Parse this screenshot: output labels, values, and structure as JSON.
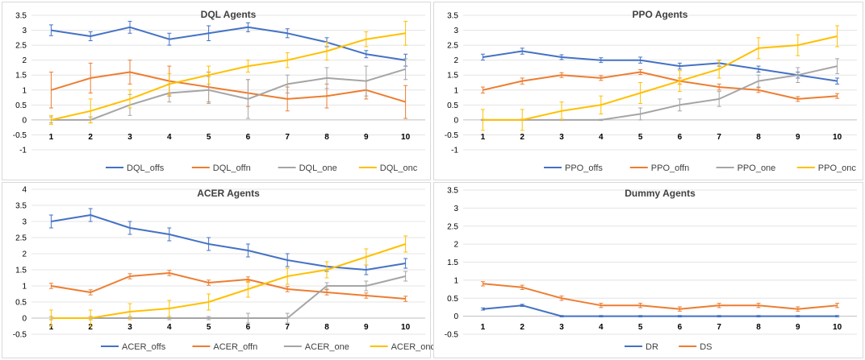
{
  "chart_data": [
    {
      "type": "line",
      "title": "DQL Agents",
      "categories": [
        "1",
        "2",
        "3",
        "4",
        "5",
        "6",
        "7",
        "8",
        "9",
        "10"
      ],
      "ylim": [
        -1,
        3.5
      ],
      "yticks": [
        "-1",
        "-0.5",
        "0",
        "0.5",
        "1",
        "1.5",
        "2",
        "2.5",
        "3",
        "3.5"
      ],
      "legend_position": "bottom",
      "series": [
        {
          "name": "DQL_offs",
          "color": "#4472c4",
          "values": [
            3.0,
            2.8,
            3.1,
            2.7,
            2.9,
            3.1,
            2.9,
            2.6,
            2.2,
            2.0
          ],
          "errors": [
            0.18,
            0.15,
            0.2,
            0.2,
            0.25,
            0.15,
            0.15,
            0.15,
            0.12,
            0.2
          ]
        },
        {
          "name": "DQL_offn",
          "color": "#ed7d31",
          "values": [
            1.0,
            1.4,
            1.6,
            1.3,
            1.1,
            0.9,
            0.7,
            0.8,
            1.0,
            0.6
          ],
          "errors": [
            0.6,
            0.5,
            0.4,
            0.5,
            0.5,
            0.45,
            0.4,
            0.4,
            0.3,
            0.55
          ]
        },
        {
          "name": "DQL_one",
          "color": "#a5a5a5",
          "values": [
            0.0,
            0.0,
            0.5,
            0.9,
            1.0,
            0.7,
            1.2,
            1.4,
            1.3,
            1.7
          ],
          "errors": [
            0.1,
            0.1,
            0.35,
            0.3,
            0.45,
            0.65,
            0.3,
            0.35,
            0.5,
            0.35
          ]
        },
        {
          "name": "DQL_onc",
          "color": "#ffc000",
          "values": [
            0.0,
            0.3,
            0.7,
            1.2,
            1.5,
            1.8,
            2.0,
            2.3,
            2.7,
            2.9
          ],
          "errors": [
            0.15,
            0.4,
            0.3,
            0.35,
            0.3,
            0.2,
            0.25,
            0.3,
            0.25,
            0.4
          ]
        }
      ]
    },
    {
      "type": "line",
      "title": "PPO Agents",
      "categories": [
        "1",
        "2",
        "3",
        "4",
        "5",
        "6",
        "7",
        "8",
        "9",
        "10"
      ],
      "ylim": [
        -1,
        3.5
      ],
      "yticks": [
        "-1",
        "-0.5",
        "0",
        "0.5",
        "1",
        "1.5",
        "2",
        "2.5",
        "3",
        "3.5"
      ],
      "legend_position": "bottom",
      "series": [
        {
          "name": "PPO_offs",
          "color": "#4472c4",
          "values": [
            2.1,
            2.3,
            2.1,
            2.0,
            2.0,
            1.8,
            1.9,
            1.7,
            1.5,
            1.3
          ],
          "errors": [
            0.1,
            0.1,
            0.08,
            0.08,
            0.1,
            0.1,
            0.1,
            0.1,
            0.1,
            0.1
          ]
        },
        {
          "name": "PPO_offn",
          "color": "#ed7d31",
          "values": [
            1.0,
            1.3,
            1.5,
            1.4,
            1.6,
            1.3,
            1.1,
            1.0,
            0.7,
            0.8
          ],
          "errors": [
            0.1,
            0.1,
            0.08,
            0.08,
            0.08,
            0.1,
            0.1,
            0.08,
            0.08,
            0.08
          ]
        },
        {
          "name": "PPO_one",
          "color": "#a5a5a5",
          "values": [
            0.0,
            0.0,
            0.0,
            0.0,
            0.2,
            0.5,
            0.7,
            1.3,
            1.5,
            1.8
          ],
          "errors": [
            0.02,
            0.02,
            0.02,
            0.02,
            0.2,
            0.2,
            0.25,
            0.2,
            0.25,
            0.25
          ]
        },
        {
          "name": "PPO_onc",
          "color": "#ffc000",
          "values": [
            0.0,
            0.0,
            0.3,
            0.5,
            0.9,
            1.3,
            1.7,
            2.4,
            2.5,
            2.8
          ],
          "errors": [
            0.35,
            0.35,
            0.3,
            0.3,
            0.35,
            0.35,
            0.3,
            0.35,
            0.35,
            0.35
          ]
        }
      ]
    },
    {
      "type": "line",
      "title": "ACER Agents",
      "categories": [
        "1",
        "2",
        "3",
        "4",
        "5",
        "6",
        "7",
        "8",
        "9",
        "10"
      ],
      "ylim": [
        -0.5,
        4
      ],
      "yticks": [
        "-0.5",
        "0",
        "0.5",
        "1",
        "1.5",
        "2",
        "2.5",
        "3",
        "3.5",
        "4"
      ],
      "legend_position": "bottom",
      "series": [
        {
          "name": "ACER_offs",
          "color": "#4472c4",
          "values": [
            3.0,
            3.2,
            2.8,
            2.6,
            2.3,
            2.1,
            1.8,
            1.6,
            1.5,
            1.7
          ],
          "errors": [
            0.2,
            0.2,
            0.2,
            0.2,
            0.2,
            0.2,
            0.2,
            0.15,
            0.15,
            0.15
          ]
        },
        {
          "name": "ACER_offn",
          "color": "#ed7d31",
          "values": [
            1.0,
            0.8,
            1.3,
            1.4,
            1.1,
            1.2,
            0.9,
            0.8,
            0.7,
            0.6
          ],
          "errors": [
            0.08,
            0.08,
            0.08,
            0.08,
            0.08,
            0.08,
            0.08,
            0.08,
            0.08,
            0.08
          ]
        },
        {
          "name": "ACER_one",
          "color": "#a5a5a5",
          "values": [
            0.0,
            0.0,
            0.0,
            0.0,
            0.0,
            0.0,
            0.0,
            1.0,
            1.0,
            1.3
          ],
          "errors": [
            0.05,
            0.05,
            0.05,
            0.05,
            0.05,
            0.15,
            0.15,
            0.1,
            0.15,
            0.15
          ]
        },
        {
          "name": "ACER_onc",
          "color": "#ffc000",
          "values": [
            0.0,
            0.0,
            0.2,
            0.3,
            0.5,
            0.9,
            1.3,
            1.5,
            1.9,
            2.3
          ],
          "errors": [
            0.25,
            0.25,
            0.25,
            0.25,
            0.25,
            0.25,
            0.25,
            0.25,
            0.25,
            0.25
          ]
        }
      ]
    },
    {
      "type": "line",
      "title": "Dummy Agents",
      "categories": [
        "1",
        "2",
        "3",
        "4",
        "5",
        "6",
        "7",
        "8",
        "9",
        "10"
      ],
      "ylim": [
        -0.5,
        3.5
      ],
      "yticks": [
        "-0.5",
        "0",
        "0.5",
        "1",
        "1.5",
        "2",
        "2.5",
        "3",
        "3.5"
      ],
      "legend_position": "bottom",
      "series": [
        {
          "name": "DR",
          "color": "#4472c4",
          "values": [
            0.2,
            0.3,
            0.0,
            0.0,
            0.0,
            0.0,
            0.0,
            0.0,
            0.0,
            0.0
          ],
          "errors": [
            0.03,
            0.03,
            0.02,
            0.02,
            0.02,
            0.02,
            0.02,
            0.02,
            0.02,
            0.02
          ]
        },
        {
          "name": "DS",
          "color": "#ed7d31",
          "values": [
            0.9,
            0.8,
            0.5,
            0.3,
            0.3,
            0.2,
            0.3,
            0.3,
            0.2,
            0.3
          ],
          "errors": [
            0.06,
            0.06,
            0.06,
            0.06,
            0.06,
            0.06,
            0.06,
            0.06,
            0.06,
            0.06
          ]
        }
      ]
    }
  ]
}
